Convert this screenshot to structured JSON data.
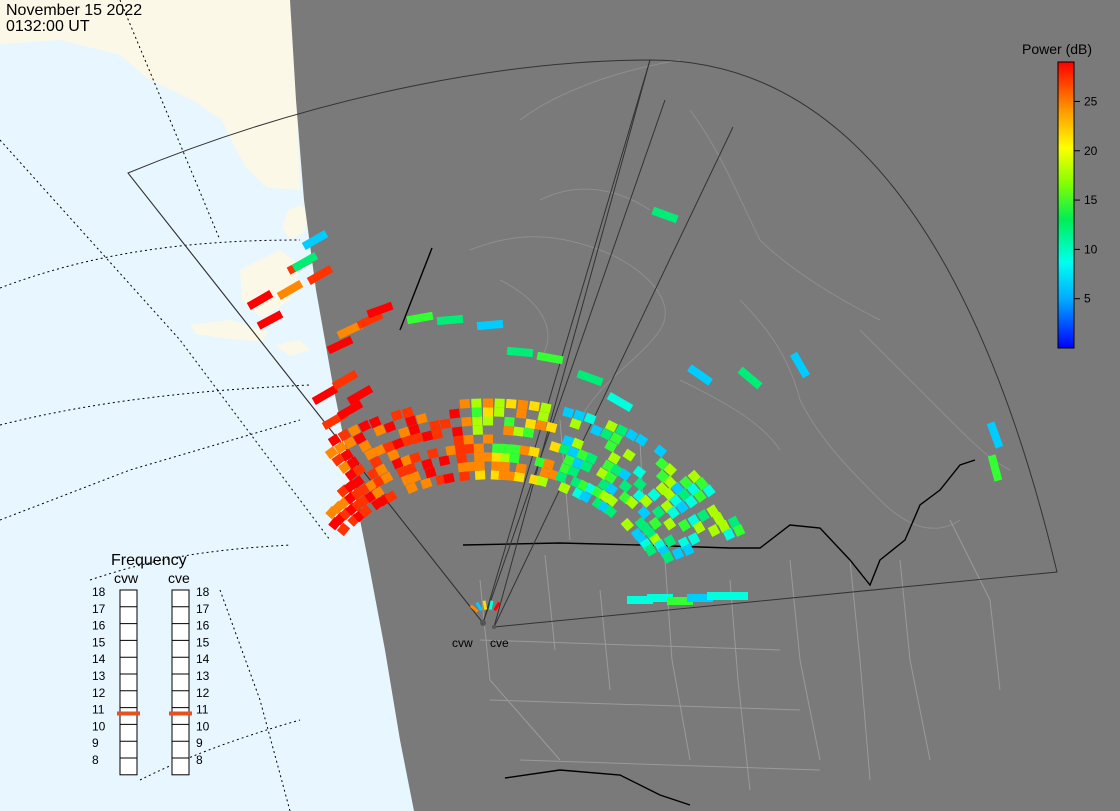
{
  "header": {
    "date": "November 15 2022",
    "time": "0132:00 UT"
  },
  "legend": {
    "title": "Power (dB)",
    "ticks": [
      25,
      20,
      15,
      10,
      5
    ],
    "min": 0,
    "max": 29
  },
  "frequency": {
    "title": "Frequency",
    "radars": [
      {
        "code": "cvw",
        "selected": 11
      },
      {
        "code": "cve",
        "selected": 11
      }
    ],
    "scale": [
      18,
      17,
      16,
      15,
      14,
      13,
      12,
      11,
      10,
      9,
      8
    ]
  },
  "sites": [
    {
      "code": "cvw"
    },
    {
      "code": "cve"
    }
  ],
  "colors": {
    "ocean": "#e8f6ff",
    "land_night": "#7a7a7a",
    "land_day": "#fbf8e8",
    "selected_freq": "#e85020"
  }
}
